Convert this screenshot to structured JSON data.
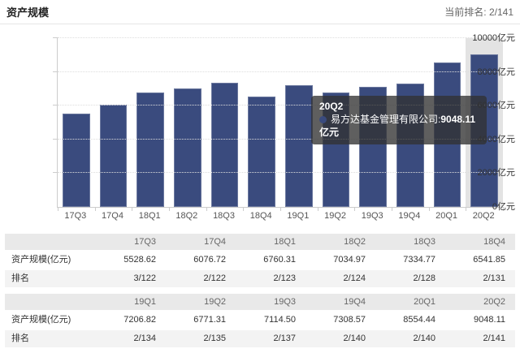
{
  "header": {
    "title": "资产规模",
    "current_rank": "当前排名: 2/141"
  },
  "chart_data": {
    "type": "bar",
    "categories": [
      "17Q3",
      "17Q4",
      "18Q1",
      "18Q2",
      "18Q3",
      "18Q4",
      "19Q1",
      "19Q2",
      "19Q3",
      "19Q4",
      "20Q1",
      "20Q2"
    ],
    "values": [
      5528.62,
      6076.72,
      6760.31,
      7034.97,
      7334.77,
      6541.85,
      7206.82,
      6771.31,
      7114.5,
      7308.57,
      8554.44,
      9048.11
    ],
    "title": "资产规模",
    "xlabel": "",
    "ylabel": "亿元",
    "ylim": [
      0,
      10000
    ],
    "y_ticks": [
      "0亿元",
      "2000亿元",
      "4000亿元",
      "6000亿元",
      "8000亿元",
      "10000亿元"
    ],
    "grid": "dotted-horizontal",
    "bar_color": "#3a4b7e",
    "highlight_index": 11,
    "highlight_band_color": "#e3e3e3",
    "legend_position": "none"
  },
  "tooltip": {
    "title": "20Q2",
    "series_label": "易方达基金管理有限公司:",
    "value": "9048.11亿元",
    "marker_color": "#3a4b7e"
  },
  "tables": [
    {
      "columns": [
        "",
        "17Q3",
        "17Q4",
        "18Q1",
        "18Q2",
        "18Q3",
        "18Q4"
      ],
      "rows": [
        {
          "label": "资产规模(亿元)",
          "values": [
            "5528.62",
            "6076.72",
            "6760.31",
            "7034.97",
            "7334.77",
            "6541.85"
          ]
        },
        {
          "label": "排名",
          "values": [
            "3/122",
            "2/122",
            "2/123",
            "2/124",
            "2/128",
            "2/131"
          ]
        }
      ]
    },
    {
      "columns": [
        "",
        "19Q1",
        "19Q2",
        "19Q3",
        "19Q4",
        "20Q1",
        "20Q2"
      ],
      "rows": [
        {
          "label": "资产规模(亿元)",
          "values": [
            "7206.82",
            "6771.31",
            "7114.50",
            "7308.57",
            "8554.44",
            "9048.11"
          ]
        },
        {
          "label": "排名",
          "values": [
            "2/134",
            "2/135",
            "2/137",
            "2/140",
            "2/140",
            "2/141"
          ]
        }
      ]
    }
  ],
  "colors": {
    "bar": "#3a4b7e",
    "highlight_band": "#e3e3e3",
    "axis": "#cccccc",
    "grid": "#dddddd",
    "table_header_bg": "#e9e9e9",
    "table_stripe_bg": "#f3f3f3"
  }
}
